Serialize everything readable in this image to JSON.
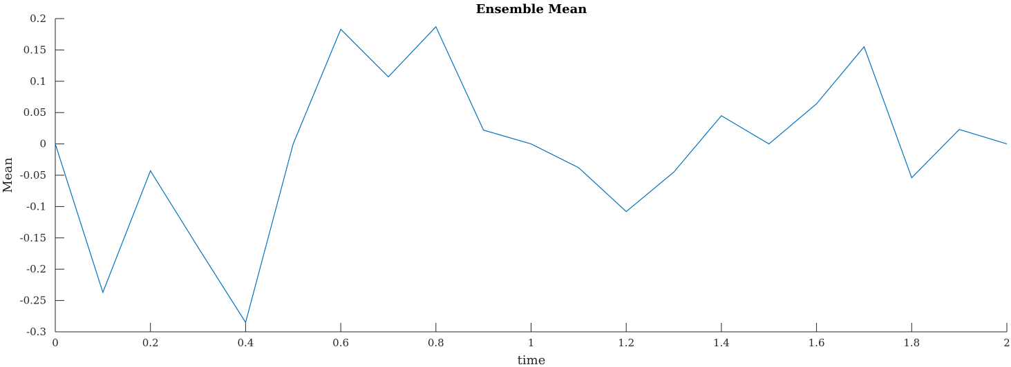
{
  "chart_data": {
    "type": "line",
    "title": "Ensemble Mean",
    "xlabel": "time",
    "ylabel": "Mean",
    "xlim": [
      0,
      2
    ],
    "ylim": [
      -0.3,
      0.2
    ],
    "xticks": [
      0,
      0.2,
      0.4,
      0.6,
      0.8,
      1,
      1.2,
      1.4,
      1.6,
      1.8,
      2
    ],
    "xtick_labels": [
      "0",
      "0.2",
      "0.4",
      "0.6",
      "0.8",
      "1",
      "1.2",
      "1.4",
      "1.6",
      "1.8",
      "2"
    ],
    "yticks": [
      0.2,
      0.15,
      0.1,
      0.05,
      0,
      -0.05,
      -0.1,
      -0.15,
      -0.2,
      -0.25,
      -0.3
    ],
    "ytick_labels": [
      "0.2",
      "0.15",
      "0.1",
      "0.05",
      "0",
      "-0.05",
      "-0.1",
      "-0.15",
      "-0.2",
      "-0.25",
      "-0.3"
    ],
    "grid": false,
    "color": "#0072bd",
    "series": [
      {
        "x": [
          0,
          0.1,
          0.2,
          0.3,
          0.4,
          0.5,
          0.6,
          0.7,
          0.8,
          0.9,
          1.0,
          1.1,
          1.2,
          1.3,
          1.4,
          1.5,
          1.6,
          1.7,
          1.8,
          1.9,
          2.0
        ],
        "y": [
          0,
          -0.237,
          -0.043,
          -0.165,
          -0.285,
          0,
          0.183,
          0.107,
          0.187,
          0.022,
          0,
          -0.038,
          -0.108,
          -0.045,
          0.045,
          0,
          0.064,
          0.155,
          -0.054,
          0.023,
          0
        ]
      }
    ]
  }
}
